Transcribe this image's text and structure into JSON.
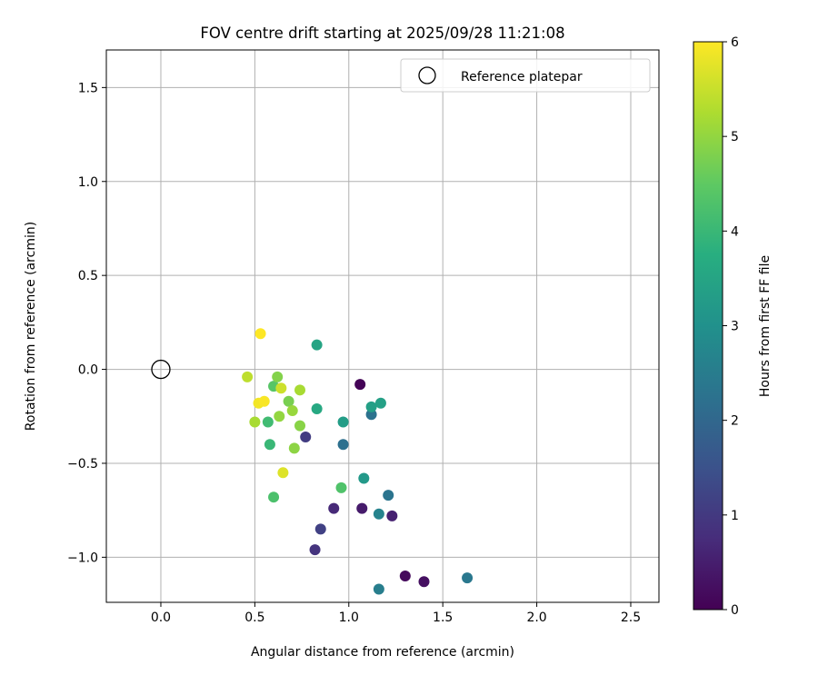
{
  "chart_data": {
    "type": "scatter",
    "title": "FOV centre drift starting at 2025/09/28 11:21:08",
    "xlabel": "Angular distance from reference (arcmin)",
    "ylabel": "Rotation from reference (arcmin)",
    "xlim": [
      -0.29,
      2.65
    ],
    "ylim": [
      -1.24,
      1.7
    ],
    "xticks": [
      0.0,
      0.5,
      1.0,
      1.5,
      2.0,
      2.5
    ],
    "xtick_labels": [
      "0.0",
      "0.5",
      "1.0",
      "1.5",
      "2.0",
      "2.5"
    ],
    "yticks": [
      -1.0,
      -0.5,
      0.0,
      0.5,
      1.0,
      1.5
    ],
    "ytick_labels": [
      "−1.0",
      "−0.5",
      "0.0",
      "0.5",
      "1.0",
      "1.5"
    ],
    "grid": true,
    "legend": {
      "label": "Reference platepar",
      "placement": "top-right"
    },
    "reference_point": {
      "x": 0.0,
      "y": 0.0
    },
    "colorbar": {
      "label": "Hours from first FF file",
      "range": [
        0,
        6
      ],
      "ticks": [
        0,
        1,
        2,
        3,
        4,
        5,
        6
      ],
      "tick_labels": [
        "0",
        "1",
        "2",
        "3",
        "4",
        "5",
        "6"
      ],
      "colormap": "viridis"
    },
    "points": [
      {
        "x": 1.06,
        "y": -0.08,
        "t": 0.05
      },
      {
        "x": 1.3,
        "y": -1.1,
        "t": 0.15
      },
      {
        "x": 1.4,
        "y": -1.13,
        "t": 0.25
      },
      {
        "x": 1.07,
        "y": -0.74,
        "t": 0.45
      },
      {
        "x": 1.23,
        "y": -0.78,
        "t": 0.55
      },
      {
        "x": 0.92,
        "y": -0.74,
        "t": 0.7
      },
      {
        "x": 0.82,
        "y": -0.96,
        "t": 0.9
      },
      {
        "x": 0.77,
        "y": -0.36,
        "t": 1.05
      },
      {
        "x": 0.85,
        "y": -0.85,
        "t": 1.15
      },
      {
        "x": 0.97,
        "y": -0.4,
        "t": 2.2
      },
      {
        "x": 1.12,
        "y": -0.24,
        "t": 2.25
      },
      {
        "x": 1.21,
        "y": -0.67,
        "t": 2.3
      },
      {
        "x": 1.63,
        "y": -1.11,
        "t": 2.4
      },
      {
        "x": 1.16,
        "y": -1.17,
        "t": 2.55
      },
      {
        "x": 1.16,
        "y": -0.77,
        "t": 2.65
      },
      {
        "x": 1.08,
        "y": -0.58,
        "t": 3.2
      },
      {
        "x": 0.97,
        "y": -0.28,
        "t": 3.3
      },
      {
        "x": 1.12,
        "y": -0.2,
        "t": 3.35
      },
      {
        "x": 1.17,
        "y": -0.18,
        "t": 3.4
      },
      {
        "x": 0.83,
        "y": 0.13,
        "t": 3.5
      },
      {
        "x": 0.83,
        "y": -0.21,
        "t": 3.6
      },
      {
        "x": 0.58,
        "y": -0.4,
        "t": 4.0
      },
      {
        "x": 0.57,
        "y": -0.28,
        "t": 4.1
      },
      {
        "x": 0.6,
        "y": -0.68,
        "t": 4.25
      },
      {
        "x": 0.96,
        "y": -0.63,
        "t": 4.3
      },
      {
        "x": 0.6,
        "y": -0.09,
        "t": 4.4
      },
      {
        "x": 0.68,
        "y": -0.17,
        "t": 4.75
      },
      {
        "x": 0.62,
        "y": -0.04,
        "t": 4.85
      },
      {
        "x": 0.74,
        "y": -0.3,
        "t": 4.9
      },
      {
        "x": 0.71,
        "y": -0.42,
        "t": 4.95
      },
      {
        "x": 0.63,
        "y": -0.25,
        "t": 5.0
      },
      {
        "x": 0.7,
        "y": -0.22,
        "t": 5.05
      },
      {
        "x": 0.74,
        "y": -0.11,
        "t": 5.2
      },
      {
        "x": 0.5,
        "y": -0.28,
        "t": 5.2
      },
      {
        "x": 0.46,
        "y": -0.04,
        "t": 5.4
      },
      {
        "x": 0.64,
        "y": -0.1,
        "t": 5.55
      },
      {
        "x": 0.65,
        "y": -0.55,
        "t": 5.7
      },
      {
        "x": 0.52,
        "y": -0.18,
        "t": 5.9
      },
      {
        "x": 0.55,
        "y": -0.17,
        "t": 5.95
      },
      {
        "x": 0.53,
        "y": 0.19,
        "t": 6.0
      }
    ]
  }
}
